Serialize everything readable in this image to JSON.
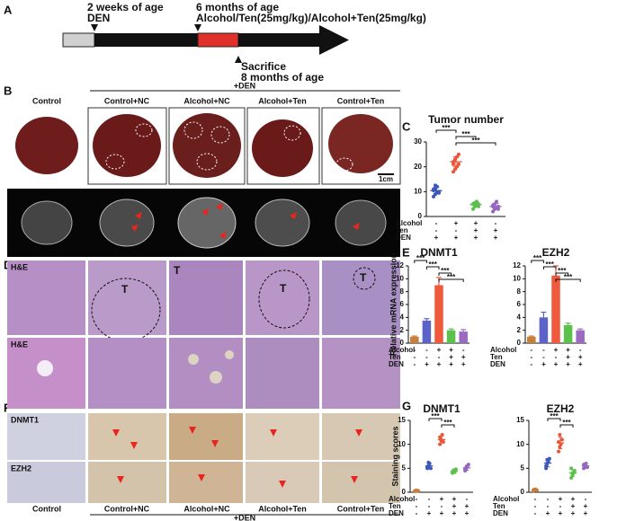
{
  "panel_letters": [
    "A",
    "B",
    "C",
    "D",
    "E",
    "F",
    "G"
  ],
  "timeline": {
    "start": "2 weeks of age",
    "start_sub": "DEN",
    "mid": "6 months of age",
    "mid_sub": "Alcohol/Ten(25mg/kg)/Alcohol+Ten(25mg/kg)",
    "end": "Sacrifice",
    "end_sub": "8 months of age"
  },
  "groups": [
    "Control",
    "Control+NC",
    "Alcohol+NC",
    "Alcohol+Ten",
    "Control+Ten"
  ],
  "den": "+DEN",
  "scale": "1cm",
  "stain_he": "H&E",
  "tumor": "T",
  "ihc": [
    "DNMT1",
    "EZH2"
  ],
  "chart_data": [
    {
      "type": "strip",
      "title": "Tumor number",
      "ylim": [
        0,
        30
      ],
      "yticks": [
        0,
        10,
        20,
        30
      ],
      "rows": [
        "Alcohol",
        "Ten",
        "DEN"
      ],
      "signs": [
        [
          "-",
          "+",
          "+",
          "-"
        ],
        [
          "-",
          "-",
          "+",
          "+"
        ],
        [
          "+",
          "+",
          "+",
          "+"
        ]
      ],
      "colors": [
        "#3b57b8",
        "#e8573a",
        "#5cc14c",
        "#9467bd"
      ],
      "values": [
        10.4,
        22,
        4.8,
        4
      ],
      "errors": [
        1.3,
        2,
        0.9,
        1.2
      ],
      "points": [
        [
          8,
          9,
          10,
          10,
          11,
          11,
          12,
          9.5,
          10.5,
          12.5
        ],
        [
          18,
          19,
          20,
          21,
          22,
          23,
          24,
          25,
          21,
          23
        ],
        [
          3,
          4,
          4.5,
          5,
          5,
          5.5,
          6,
          4,
          5
        ],
        [
          2,
          3,
          3.5,
          4,
          4,
          5,
          6,
          3,
          4.5
        ]
      ],
      "brackets": [
        {
          "from": 0,
          "to": 1,
          "label": "***"
        },
        {
          "from": 1,
          "to": 2,
          "label": "***"
        },
        {
          "from": 1,
          "to": 3,
          "label": "***"
        }
      ]
    },
    {
      "type": "bar",
      "title": "DNMT1",
      "y_label": "Relative mRNA expression",
      "ylim": [
        0,
        12
      ],
      "yticks": [
        0,
        2,
        4,
        6,
        8,
        10,
        12
      ],
      "rows": [
        "Alcohol",
        "Ten",
        "DEN"
      ],
      "signs": [
        [
          "-",
          "-",
          "+",
          "+",
          "-"
        ],
        [
          "-",
          "-",
          "-",
          "+",
          "+"
        ],
        [
          "-",
          "+",
          "+",
          "+",
          "+"
        ]
      ],
      "colors": [
        "#c87f3a",
        "#5b63c9",
        "#f05a3c",
        "#5cc14c",
        "#9b6bc2"
      ],
      "values": [
        1,
        3.5,
        9,
        2,
        1.8
      ],
      "errors": [
        0.1,
        0.3,
        1.2,
        0.2,
        0.3
      ],
      "brackets": [
        {
          "from": 0,
          "to": 1,
          "label": "***"
        },
        {
          "from": 1,
          "to": 2,
          "label": "***"
        },
        {
          "from": 2,
          "to": 3,
          "label": "***"
        },
        {
          "from": 2,
          "to": 4,
          "label": "***"
        }
      ]
    },
    {
      "type": "bar",
      "title": "EZH2",
      "ylim": [
        0,
        12
      ],
      "yticks": [
        0,
        2,
        4,
        6,
        8,
        10,
        12
      ],
      "rows": [
        "Alcohol",
        "Ten",
        "DEN"
      ],
      "signs": [
        [
          "-",
          "-",
          "+",
          "+",
          "-"
        ],
        [
          "-",
          "-",
          "-",
          "+",
          "+"
        ],
        [
          "-",
          "+",
          "+",
          "+",
          "+"
        ]
      ],
      "colors": [
        "#c87f3a",
        "#5b63c9",
        "#f05a3c",
        "#5cc14c",
        "#9b6bc2"
      ],
      "values": [
        1,
        4,
        10.5,
        2.8,
        2
      ],
      "errors": [
        0.1,
        0.8,
        1.5,
        0.3,
        0.2
      ],
      "brackets": [
        {
          "from": 0,
          "to": 1,
          "label": "***"
        },
        {
          "from": 1,
          "to": 2,
          "label": "***"
        },
        {
          "from": 2,
          "to": 3,
          "label": "***"
        },
        {
          "from": 2,
          "to": 4,
          "label": "***"
        }
      ]
    },
    {
      "type": "strip",
      "title": "DNMT1",
      "y_label": "Staining scores",
      "ylim": [
        0,
        15
      ],
      "yticks": [
        0,
        5,
        10,
        15
      ],
      "rows": [
        "Alcohol",
        "Ten",
        "DEN"
      ],
      "signs": [
        [
          "-",
          "-",
          "+",
          "+",
          "-"
        ],
        [
          "-",
          "-",
          "-",
          "+",
          "+"
        ],
        [
          "-",
          "+",
          "+",
          "+",
          "+"
        ]
      ],
      "colors": [
        "#c87f3a",
        "#3b57b8",
        "#e8573a",
        "#5cc14c",
        "#9467bd"
      ],
      "values": [
        0.3,
        5.5,
        11,
        4.4,
        5.1
      ],
      "errors": [
        0.1,
        0.5,
        0.7,
        0.3,
        0.5
      ],
      "points": [
        [
          0.2,
          0.3,
          0.4,
          0.3,
          0.2,
          0.4
        ],
        [
          5,
          5.5,
          6,
          5,
          5.2,
          6.2
        ],
        [
          10,
          11,
          12,
          10.5,
          11.5,
          10.8
        ],
        [
          4,
          4.5,
          4.2,
          4.8,
          4.3,
          4.6
        ],
        [
          4.5,
          5,
          5.5,
          5.8,
          4.8,
          5.2
        ]
      ],
      "brackets": [
        {
          "from": 1,
          "to": 2,
          "label": "***"
        },
        {
          "from": 2,
          "to": 3,
          "label": "***"
        }
      ]
    },
    {
      "type": "strip",
      "title": "EZH2",
      "ylim": [
        0,
        15
      ],
      "yticks": [
        0,
        5,
        10,
        15
      ],
      "rows": [
        "Alcohol",
        "Ten",
        "DEN"
      ],
      "signs": [
        [
          "-",
          "-",
          "+",
          "+",
          "-"
        ],
        [
          "-",
          "-",
          "-",
          "+",
          "+"
        ],
        [
          "-",
          "+",
          "+",
          "+",
          "+"
        ]
      ],
      "colors": [
        "#c87f3a",
        "#3b57b8",
        "#e8573a",
        "#5cc14c",
        "#9467bd"
      ],
      "values": [
        0.5,
        6.1,
        10.3,
        4,
        5.5
      ],
      "errors": [
        0.1,
        0.8,
        1.2,
        0.7,
        0.4
      ],
      "points": [
        [
          0.3,
          0.5,
          0.6,
          0.4,
          0.5,
          0.6
        ],
        [
          5,
          6,
          6.5,
          7,
          5.5,
          6.8
        ],
        [
          8.5,
          9.5,
          10,
          11,
          10.5,
          12
        ],
        [
          3,
          3.5,
          4,
          4.5,
          5,
          4
        ],
        [
          5,
          5.5,
          6,
          5.2,
          5.8,
          5.4
        ]
      ],
      "brackets": [
        {
          "from": 1,
          "to": 2,
          "label": "***"
        },
        {
          "from": 2,
          "to": 3,
          "label": "***"
        }
      ]
    }
  ]
}
